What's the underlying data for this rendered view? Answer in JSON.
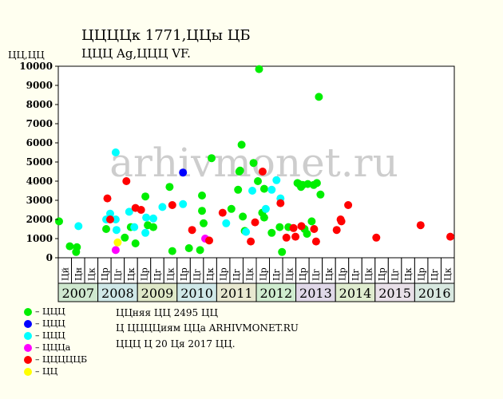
{
  "header": {
    "title": "ЦЦЦЦк 1771,ЦЦы ЦБ",
    "subtitle": "ЦЦЦ Ag,ЦЦЦ VF.",
    "y_unit": "ЦЦ,ЦЦ"
  },
  "watermark": "arhivmonet.ru",
  "legend": [
    {
      "label": "– ЦЦЦ",
      "color": "#00ee00"
    },
    {
      "label": "– ЦЦЦ",
      "color": "#0000ff"
    },
    {
      "label": "– ЦЦЦ",
      "color": "#00ffff"
    },
    {
      "label": "– ЦЦЦа",
      "color": "#ff00ff"
    },
    {
      "label": "– ЦЦЦЦЦБ",
      "color": "#ff0000"
    },
    {
      "label": "– ЦЦ",
      "color": "#ffff00"
    }
  ],
  "info": {
    "line1": "ЦЦняя ЦЦ 2495 ЦЦ",
    "line2": "Ц ЦЦЦЦиям ЦЦа ARHIVMONET.RU",
    "line3": "ЦЦЦ Ц 20 Ця 2017 ЦЦ."
  },
  "chart_data": {
    "type": "scatter",
    "title": "ЦЦЦЦк 1771,ЦЦы ЦБ",
    "ylabel": "ЦЦ,ЦЦ",
    "ylim": [
      0,
      10000
    ],
    "yticks": [
      0,
      1000,
      2000,
      3000,
      4000,
      5000,
      6000,
      7000,
      8000,
      9000,
      10000
    ],
    "xlim": [
      2007,
      2017
    ],
    "years": [
      {
        "label": "2007",
        "color": "#cfe8cf",
        "months": [
          "Цй",
          "Цн",
          "Цк"
        ]
      },
      {
        "label": "2008",
        "color": "#cfe8e8",
        "months": [
          "Цр",
          "Цг",
          "Цк"
        ]
      },
      {
        "label": "2009",
        "color": "#dfe8c8",
        "months": [
          "Цр",
          "Цг",
          "Цк"
        ]
      },
      {
        "label": "2010",
        "color": "#cfe8e8",
        "months": [
          "Цр",
          "Цг",
          "Цк"
        ]
      },
      {
        "label": "2011",
        "color": "#e8e8d0",
        "months": [
          "Цр",
          "Цг",
          "Цк"
        ]
      },
      {
        "label": "2012",
        "color": "#cfeccf",
        "months": [
          "Цр",
          "Цг",
          "Цк"
        ]
      },
      {
        "label": "2013",
        "color": "#e0d8e8",
        "months": [
          "Цр",
          "Цг",
          "Цк"
        ]
      },
      {
        "label": "2014",
        "color": "#dfeccf",
        "months": [
          "Цр",
          "Цг",
          "Цк"
        ]
      },
      {
        "label": "2015",
        "color": "#e8e0e8",
        "months": [
          "Цр",
          "Цг",
          "Цк"
        ]
      },
      {
        "label": "2016",
        "color": "#d8e8e0",
        "months": [
          "Цр",
          "Цг",
          "Цк"
        ]
      }
    ],
    "series": [
      {
        "color": "#00ee00",
        "points": [
          [
            2007.02,
            1900
          ],
          [
            2007.29,
            600
          ],
          [
            2007.45,
            300
          ],
          [
            2007.47,
            550
          ],
          [
            2008.21,
            1500
          ],
          [
            2008.68,
            1050
          ],
          [
            2008.83,
            1600
          ],
          [
            2008.95,
            750
          ],
          [
            2009.2,
            3200
          ],
          [
            2009.26,
            1700
          ],
          [
            2009.4,
            1600
          ],
          [
            2009.81,
            3700
          ],
          [
            2009.88,
            350
          ],
          [
            2010.3,
            500
          ],
          [
            2010.58,
            400
          ],
          [
            2010.63,
            3250
          ],
          [
            2010.63,
            2450
          ],
          [
            2010.67,
            1800
          ],
          [
            2010.87,
            5200
          ],
          [
            2011.37,
            2550
          ],
          [
            2011.54,
            3550
          ],
          [
            2011.57,
            4500
          ],
          [
            2011.59,
            4550
          ],
          [
            2011.63,
            5900
          ],
          [
            2011.66,
            2150
          ],
          [
            2011.71,
            1400
          ],
          [
            2011.93,
            4950
          ],
          [
            2012.04,
            4000
          ],
          [
            2012.07,
            9850
          ],
          [
            2012.15,
            2350
          ],
          [
            2012.2,
            3600
          ],
          [
            2012.2,
            2100
          ],
          [
            2012.39,
            1300
          ],
          [
            2012.59,
            1600
          ],
          [
            2012.65,
            300
          ],
          [
            2012.81,
            1600
          ],
          [
            2013.04,
            3900
          ],
          [
            2013.08,
            3850
          ],
          [
            2013.13,
            3700
          ],
          [
            2013.17,
            3800
          ],
          [
            2013.22,
            1500
          ],
          [
            2013.28,
            1250
          ],
          [
            2013.3,
            3850
          ],
          [
            2013.4,
            1900
          ],
          [
            2013.45,
            3800
          ],
          [
            2013.53,
            3900
          ],
          [
            2013.58,
            8400
          ],
          [
            2013.62,
            3300
          ]
        ]
      },
      {
        "color": "#0000ff",
        "points": [
          [
            2010.15,
            4450
          ]
        ]
      },
      {
        "color": "#00ffff",
        "points": [
          [
            2007.51,
            1650
          ],
          [
            2008.21,
            2000
          ],
          [
            2008.31,
            2300
          ],
          [
            2008.45,
            5500
          ],
          [
            2008.45,
            2000
          ],
          [
            2008.47,
            1450
          ],
          [
            2008.79,
            2400
          ],
          [
            2008.92,
            1600
          ],
          [
            2009.2,
            1300
          ],
          [
            2009.22,
            2100
          ],
          [
            2009.4,
            2050
          ],
          [
            2009.63,
            2650
          ],
          [
            2010.15,
            2800
          ],
          [
            2011.24,
            1800
          ],
          [
            2011.74,
            1350
          ],
          [
            2011.9,
            3500
          ],
          [
            2012.24,
            2550
          ],
          [
            2012.39,
            3550
          ],
          [
            2012.51,
            4050
          ],
          [
            2012.61,
            3100
          ]
        ]
      },
      {
        "color": "#ff00ff",
        "points": [
          [
            2008.45,
            400
          ],
          [
            2010.71,
            1000
          ]
        ]
      },
      {
        "color": "#ff0000",
        "points": [
          [
            2008.24,
            3100
          ],
          [
            2008.31,
            2000
          ],
          [
            2008.72,
            4000
          ],
          [
            2008.95,
            2600
          ],
          [
            2009.09,
            2500
          ],
          [
            2009.88,
            2750
          ],
          [
            2010.38,
            1450
          ],
          [
            2010.81,
            900
          ],
          [
            2011.15,
            2350
          ],
          [
            2011.86,
            850
          ],
          [
            2011.97,
            1850
          ],
          [
            2012.16,
            4500
          ],
          [
            2012.61,
            2850
          ],
          [
            2012.76,
            1050
          ],
          [
            2012.94,
            1550
          ],
          [
            2012.99,
            1100
          ],
          [
            2013.14,
            1650
          ],
          [
            2013.46,
            1500
          ],
          [
            2013.51,
            850
          ],
          [
            2014.03,
            1450
          ],
          [
            2014.13,
            2000
          ],
          [
            2014.15,
            1900
          ],
          [
            2014.32,
            2750
          ],
          [
            2015.03,
            1050
          ],
          [
            2016.15,
            1700
          ],
          [
            2016.9,
            1100
          ]
        ]
      },
      {
        "color": "#ffff00",
        "points": [
          [
            2008.5,
            800
          ]
        ]
      }
    ]
  }
}
